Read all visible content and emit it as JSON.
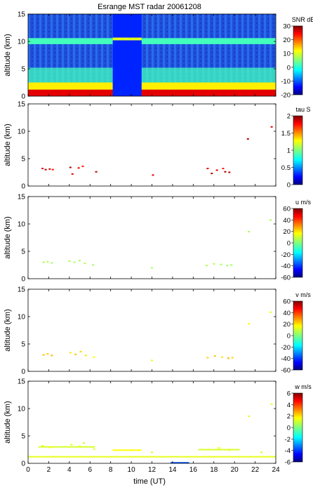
{
  "figure": {
    "title": "Esrange MST radar 20061208",
    "xlabel": "time (UT)"
  },
  "chart_data": [
    {
      "type": "heatmap",
      "title": "Esrange MST radar 20061208",
      "quantity": "SNR",
      "colorbar_label": "SNR dB",
      "ylabel": "altitude (km)",
      "xlabel": "",
      "xlim": [
        0,
        24
      ],
      "ylim": [
        0,
        15
      ],
      "clim": [
        -20,
        30
      ],
      "x_ticks": [
        0,
        2,
        4,
        6,
        8,
        10,
        12,
        14,
        16,
        18,
        20,
        22,
        24
      ],
      "y_ticks": [
        0,
        5,
        10,
        15
      ],
      "cbar_ticks": [
        -20,
        -10,
        0,
        10,
        20,
        30
      ],
      "layers": [
        {
          "name": "background",
          "t": [
            0,
            24
          ],
          "alt": [
            0,
            15
          ],
          "value": -10
        },
        {
          "name": "boundary-layer",
          "t": [
            0,
            24
          ],
          "alt": [
            0,
            1.2
          ],
          "value": 25
        },
        {
          "name": "low-echo",
          "t": [
            0,
            24
          ],
          "alt": [
            1.2,
            2.5
          ],
          "value": 12
        },
        {
          "name": "sloping-layer",
          "t": [
            0,
            24
          ],
          "alt": [
            2.5,
            5.2
          ],
          "value": 2
        },
        {
          "name": "tropopause-echo",
          "t": [
            0,
            24
          ],
          "alt": [
            9.5,
            10.6
          ],
          "value": 2
        },
        {
          "name": "gap",
          "t": [
            8.2,
            11.0
          ],
          "alt": [
            0,
            15
          ],
          "value": -12
        },
        {
          "name": "gap-line",
          "t": [
            8.2,
            11.0
          ],
          "alt": [
            10.2,
            10.7
          ],
          "value": 10
        }
      ]
    },
    {
      "type": "scatter",
      "quantity": "tau",
      "colorbar_label": "tau S",
      "ylabel": "altitude (km)",
      "xlim": [
        0,
        24
      ],
      "ylim": [
        0,
        15
      ],
      "clim": [
        0,
        2
      ],
      "x_ticks": [
        0,
        2,
        4,
        6,
        8,
        10,
        12,
        14,
        16,
        18,
        20,
        22,
        24
      ],
      "y_ticks": [
        0,
        5,
        10,
        15
      ],
      "cbar_ticks": [
        0,
        0.5,
        1,
        1.5,
        2
      ],
      "points": [
        {
          "t": 1.4,
          "alt": 3.2,
          "v": 1.8
        },
        {
          "t": 1.7,
          "alt": 3.0,
          "v": 1.9
        },
        {
          "t": 2.1,
          "alt": 3.1,
          "v": 1.8
        },
        {
          "t": 2.4,
          "alt": 3.0,
          "v": 1.7
        },
        {
          "t": 4.1,
          "alt": 3.4,
          "v": 1.9
        },
        {
          "t": 4.3,
          "alt": 2.2,
          "v": 1.8
        },
        {
          "t": 4.9,
          "alt": 3.3,
          "v": 1.8
        },
        {
          "t": 5.3,
          "alt": 3.6,
          "v": 1.7
        },
        {
          "t": 6.6,
          "alt": 2.6,
          "v": 1.9
        },
        {
          "t": 12.1,
          "alt": 2.0,
          "v": 1.8
        },
        {
          "t": 17.4,
          "alt": 3.2,
          "v": 1.8
        },
        {
          "t": 17.8,
          "alt": 2.3,
          "v": 1.9
        },
        {
          "t": 18.3,
          "alt": 2.9,
          "v": 1.8
        },
        {
          "t": 18.9,
          "alt": 3.2,
          "v": 1.7
        },
        {
          "t": 19.1,
          "alt": 2.6,
          "v": 1.9
        },
        {
          "t": 19.5,
          "alt": 2.5,
          "v": 1.9
        },
        {
          "t": 21.3,
          "alt": 8.6,
          "v": 1.9
        },
        {
          "t": 23.6,
          "alt": 10.8,
          "v": 1.8
        }
      ]
    },
    {
      "type": "scatter",
      "quantity": "u",
      "colorbar_label": "u m/s",
      "ylabel": "altitude (km)",
      "xlim": [
        0,
        24
      ],
      "ylim": [
        0,
        15
      ],
      "clim": [
        -60,
        60
      ],
      "x_ticks": [
        0,
        2,
        4,
        6,
        8,
        10,
        12,
        14,
        16,
        18,
        20,
        22,
        24
      ],
      "y_ticks": [
        0,
        5,
        10,
        15
      ],
      "cbar_ticks": [
        -60,
        -40,
        -20,
        0,
        20,
        40,
        60
      ],
      "points": [
        {
          "t": 1.5,
          "alt": 3.0,
          "v": 5
        },
        {
          "t": 1.9,
          "alt": 3.1,
          "v": 6
        },
        {
          "t": 2.3,
          "alt": 2.9,
          "v": 4
        },
        {
          "t": 4.0,
          "alt": 3.2,
          "v": 5
        },
        {
          "t": 4.5,
          "alt": 3.0,
          "v": 6
        },
        {
          "t": 5.0,
          "alt": 3.3,
          "v": 4
        },
        {
          "t": 5.5,
          "alt": 2.8,
          "v": 5
        },
        {
          "t": 6.3,
          "alt": 2.5,
          "v": 4
        },
        {
          "t": 12.0,
          "alt": 2.0,
          "v": 5
        },
        {
          "t": 17.3,
          "alt": 2.4,
          "v": 5
        },
        {
          "t": 18.0,
          "alt": 2.7,
          "v": 6
        },
        {
          "t": 18.7,
          "alt": 2.6,
          "v": 5
        },
        {
          "t": 19.3,
          "alt": 2.4,
          "v": 3
        },
        {
          "t": 19.7,
          "alt": 2.5,
          "v": 4
        },
        {
          "t": 21.4,
          "alt": 8.6,
          "v": 5
        },
        {
          "t": 23.5,
          "alt": 10.7,
          "v": 5
        }
      ]
    },
    {
      "type": "scatter",
      "quantity": "v",
      "colorbar_label": "v m/s",
      "ylabel": "altitude (km)",
      "xlim": [
        0,
        24
      ],
      "ylim": [
        0,
        15
      ],
      "clim": [
        -60,
        60
      ],
      "x_ticks": [
        0,
        2,
        4,
        6,
        8,
        10,
        12,
        14,
        16,
        18,
        20,
        22,
        24
      ],
      "y_ticks": [
        0,
        5,
        10,
        15
      ],
      "cbar_ticks": [
        -60,
        -40,
        -20,
        0,
        20,
        40,
        60
      ],
      "points": [
        {
          "t": 1.5,
          "alt": 3.0,
          "v": 22
        },
        {
          "t": 1.9,
          "alt": 3.2,
          "v": 20
        },
        {
          "t": 2.3,
          "alt": 2.9,
          "v": 24
        },
        {
          "t": 4.1,
          "alt": 3.4,
          "v": 18
        },
        {
          "t": 4.6,
          "alt": 3.1,
          "v": 22
        },
        {
          "t": 5.1,
          "alt": 3.6,
          "v": 20
        },
        {
          "t": 5.6,
          "alt": 2.9,
          "v": 18
        },
        {
          "t": 6.4,
          "alt": 2.6,
          "v": 15
        },
        {
          "t": 12.0,
          "alt": 2.0,
          "v": 12
        },
        {
          "t": 17.4,
          "alt": 2.5,
          "v": 20
        },
        {
          "t": 18.1,
          "alt": 2.8,
          "v": 22
        },
        {
          "t": 18.8,
          "alt": 2.6,
          "v": 18
        },
        {
          "t": 19.4,
          "alt": 2.4,
          "v": 24
        },
        {
          "t": 19.8,
          "alt": 2.5,
          "v": 20
        },
        {
          "t": 21.4,
          "alt": 8.7,
          "v": 15
        },
        {
          "t": 23.5,
          "alt": 10.8,
          "v": 12
        }
      ]
    },
    {
      "type": "scatter",
      "quantity": "w",
      "colorbar_label": "w m/s",
      "ylabel": "altitude (km)",
      "xlabel": "time (UT)",
      "xlim": [
        0,
        24
      ],
      "ylim": [
        0,
        15
      ],
      "clim": [
        -6,
        6
      ],
      "x_ticks": [
        0,
        2,
        4,
        6,
        8,
        10,
        12,
        14,
        16,
        18,
        20,
        22,
        24
      ],
      "y_ticks": [
        0,
        5,
        10,
        15
      ],
      "cbar_ticks": [
        -6,
        -4,
        -2,
        0,
        2,
        4,
        6
      ],
      "segments": [
        {
          "t": [
            0,
            24
          ],
          "alt": 1.2,
          "v": 1.2
        },
        {
          "t": [
            8.2,
            11.0
          ],
          "alt": 2.4,
          "v": 1.5
        },
        {
          "t": [
            1.0,
            6.5
          ],
          "alt": 3.0,
          "v": 1.0
        },
        {
          "t": [
            13.8,
            15.6
          ],
          "alt": 0.1,
          "v": -3.5
        },
        {
          "t": [
            16.5,
            20.5
          ],
          "alt": 2.5,
          "v": 1.0
        }
      ],
      "points": [
        {
          "t": 1.4,
          "alt": 3.2,
          "v": 1.2
        },
        {
          "t": 2.1,
          "alt": 2.9,
          "v": 1.4
        },
        {
          "t": 4.2,
          "alt": 3.4,
          "v": 1.1
        },
        {
          "t": 5.0,
          "alt": 3.1,
          "v": 1.3
        },
        {
          "t": 5.4,
          "alt": 3.7,
          "v": 1.0
        },
        {
          "t": 6.4,
          "alt": 2.6,
          "v": 1.2
        },
        {
          "t": 12.0,
          "alt": 2.0,
          "v": 1.0
        },
        {
          "t": 17.5,
          "alt": 2.5,
          "v": 1.2
        },
        {
          "t": 18.5,
          "alt": 2.8,
          "v": 1.4
        },
        {
          "t": 19.5,
          "alt": 2.4,
          "v": 1.6
        },
        {
          "t": 21.4,
          "alt": 8.6,
          "v": 1.1
        },
        {
          "t": 22.6,
          "alt": 2.0,
          "v": 1.0
        },
        {
          "t": 23.6,
          "alt": 10.8,
          "v": 1.2
        }
      ]
    }
  ]
}
